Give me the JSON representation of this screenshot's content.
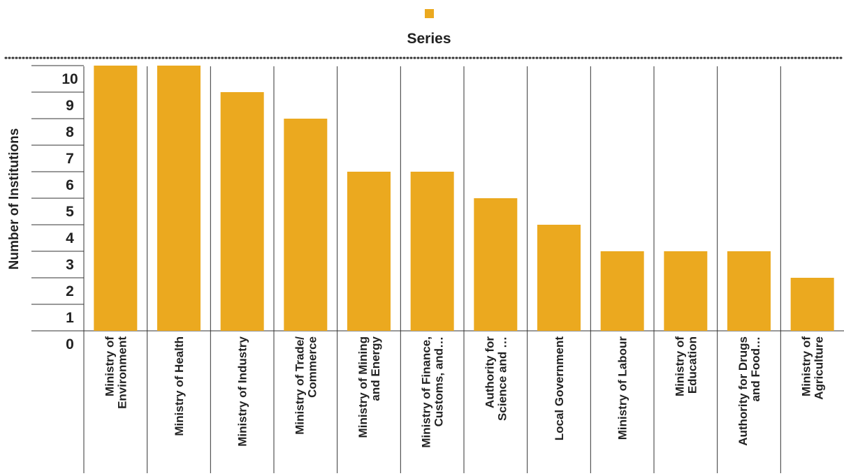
{
  "chart_data": {
    "type": "bar",
    "categories": [
      [
        "Ministry of",
        "Environment"
      ],
      [
        "Ministry of Health"
      ],
      [
        "Ministry of Industry"
      ],
      [
        "Ministry of Trade/",
        "Commerce"
      ],
      [
        "Ministry of Mining",
        "and Energy"
      ],
      [
        "Ministry of Finance,",
        "Customs, and…"
      ],
      [
        "Authority for",
        "Science and …"
      ],
      [
        "Local Government"
      ],
      [
        "Ministry of Labour"
      ],
      [
        "Ministry of",
        "Education"
      ],
      [
        "Authority for Drugs",
        "and Food…"
      ],
      [
        "Ministry of",
        "Agriculture"
      ]
    ],
    "series": [
      {
        "name": "Series",
        "values": [
          10,
          10,
          9,
          8,
          6,
          6,
          5,
          4,
          3,
          3,
          3,
          2
        ]
      }
    ],
    "ylabel": "Number of Institutions",
    "y_ticks": [
      "0",
      "1",
      "2",
      "3",
      "4",
      "5",
      "6",
      "7",
      "8",
      "9",
      "10"
    ],
    "ylim": [
      0,
      11
    ],
    "legend_position": "top-center",
    "colors": {
      "bar": "#EBA91F",
      "text": "#222222",
      "grid": "#333333"
    }
  }
}
